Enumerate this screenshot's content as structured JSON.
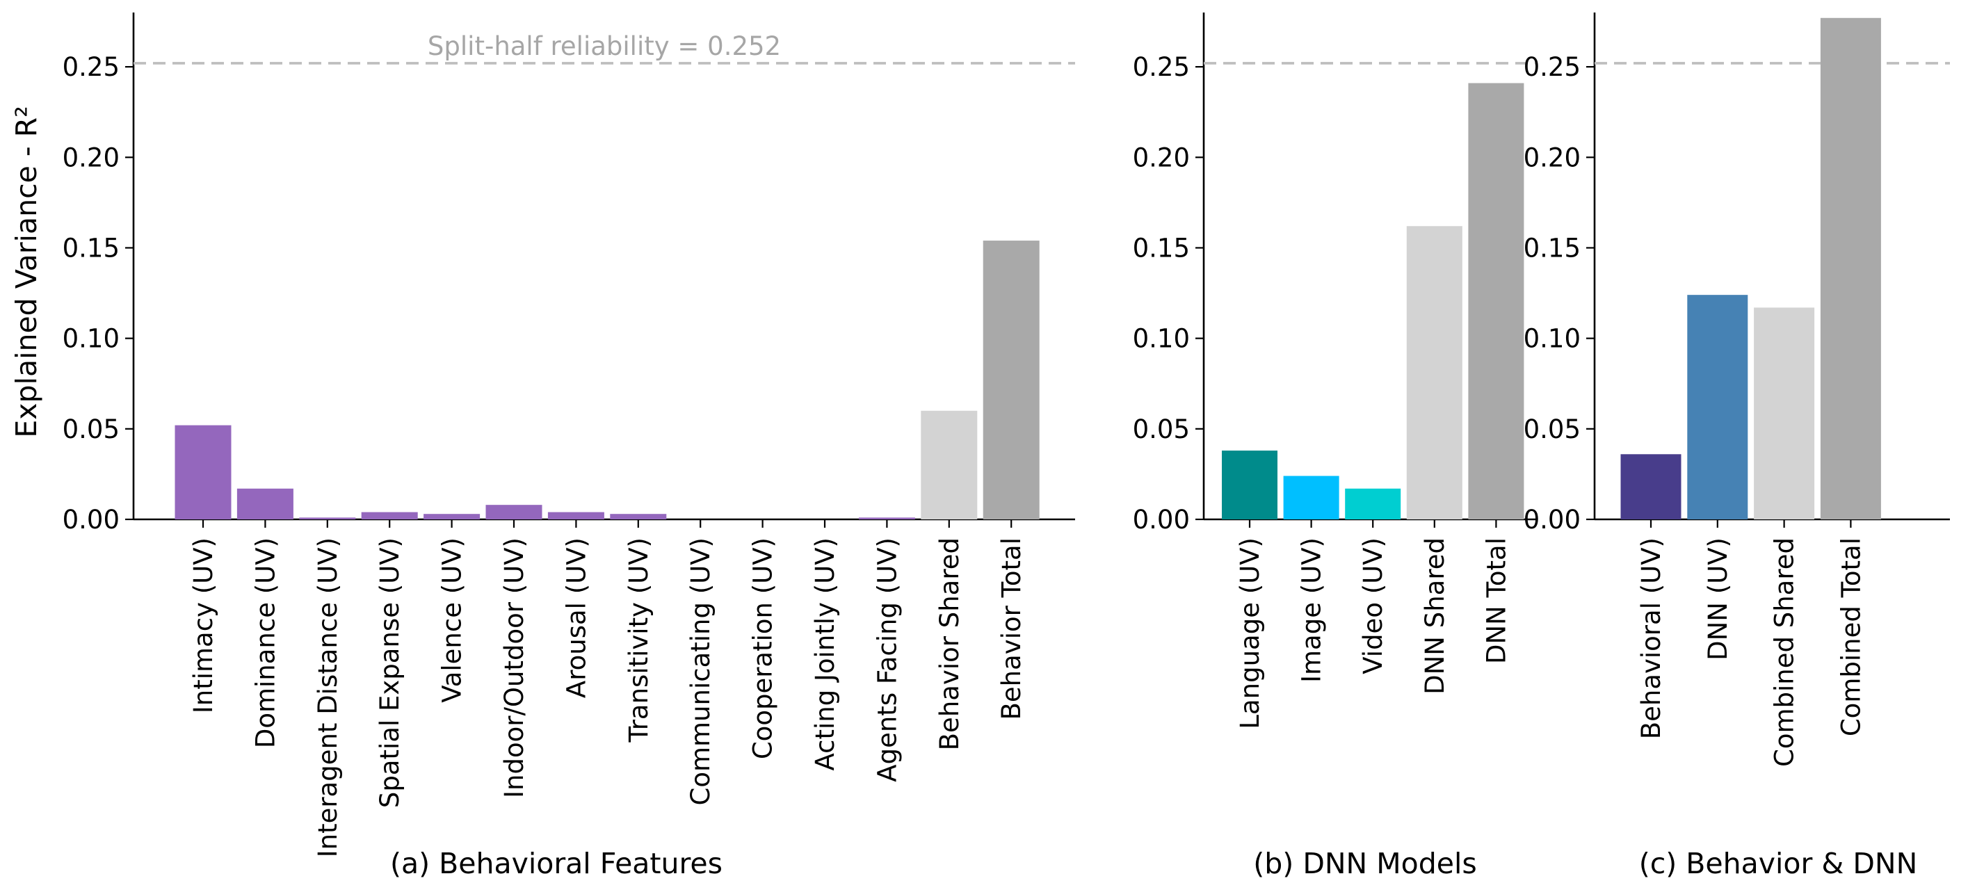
{
  "figure": {
    "ylabel": "Explained Variance - R²",
    "reference_color": "#bdbdbd"
  },
  "chart_data": [
    {
      "type": "bar",
      "caption": "(a)  Behavioral Features",
      "ylabel": "Explained Variance - R²",
      "ylim": [
        0,
        0.28
      ],
      "yticks": [
        "0.00",
        "0.05",
        "0.10",
        "0.15",
        "0.20",
        "0.25"
      ],
      "grid": false,
      "reference_line": {
        "value": 0.252,
        "label": "Split-half reliability = 0.252"
      },
      "categories": [
        "Intimacy  (UV)",
        "Dominance  (UV)",
        "Interagent Distance  (UV)",
        "Spatial Expanse  (UV)",
        "Valence  (UV)",
        "Indoor/Outdoor  (UV)",
        "Arousal  (UV)",
        "Transitivity  (UV)",
        "Communicating  (UV)",
        "Cooperation  (UV)",
        "Acting Jointly  (UV)",
        "Agents Facing  (UV)",
        "Behavior Shared",
        "Behavior Total"
      ],
      "values": [
        0.052,
        0.017,
        0.001,
        0.004,
        0.003,
        0.008,
        0.004,
        0.003,
        0.0,
        0.0,
        0.0,
        0.001,
        0.06,
        0.154
      ],
      "colors": [
        "#9467bd",
        "#9467bd",
        "#9467bd",
        "#9467bd",
        "#9467bd",
        "#9467bd",
        "#9467bd",
        "#9467bd",
        "#9467bd",
        "#9467bd",
        "#9467bd",
        "#9467bd",
        "#d3d3d3",
        "#a9a9a9"
      ]
    },
    {
      "type": "bar",
      "caption": "(b)  DNN Models",
      "ylabel": "",
      "ylim": [
        0,
        0.28
      ],
      "yticks": [
        "0.00",
        "0.05",
        "0.10",
        "0.15",
        "0.20",
        "0.25"
      ],
      "grid": false,
      "reference_line": {
        "value": 0.252,
        "label": ""
      },
      "categories": [
        "Language  (UV)",
        "Image  (UV)",
        "Video  (UV)",
        "DNN Shared",
        "DNN Total"
      ],
      "values": [
        0.038,
        0.024,
        0.017,
        0.162,
        0.241
      ],
      "colors": [
        "#008b8b",
        "#00bfff",
        "#00ced1",
        "#d3d3d3",
        "#a9a9a9"
      ]
    },
    {
      "type": "bar",
      "caption": "(c)  Behavior & DNN",
      "ylabel": "",
      "ylim": [
        0,
        0.28
      ],
      "yticks": [
        "0.00",
        "0.05",
        "0.10",
        "0.15",
        "0.20",
        "0.25"
      ],
      "grid": false,
      "reference_line": {
        "value": 0.252,
        "label": ""
      },
      "categories": [
        "Behavioral  (UV)",
        "DNN  (UV)",
        "Combined Shared",
        "Combined Total"
      ],
      "values": [
        0.036,
        0.124,
        0.117,
        0.277
      ],
      "colors": [
        "#483d8b",
        "#4682b4",
        "#d3d3d3",
        "#a9a9a9"
      ]
    }
  ]
}
